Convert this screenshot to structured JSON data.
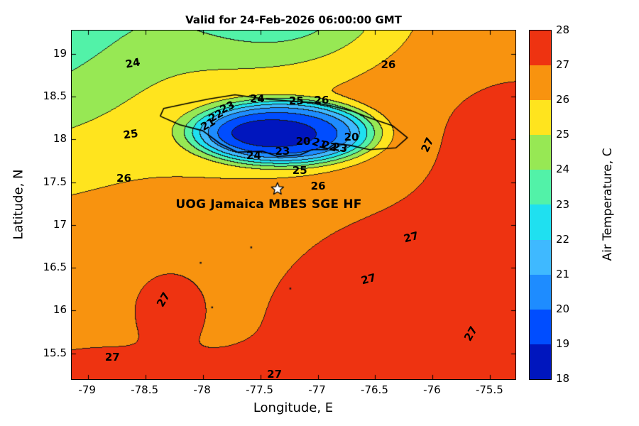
{
  "chart_data": {
    "type": "heatmap",
    "title": "Valid for 24-Feb-2026 06:00:00 GMT",
    "xlabel": "Longitude, E",
    "ylabel": "Latitude, N",
    "xlim": [
      -79.14,
      -75.28
    ],
    "ylim": [
      15.2,
      19.27
    ],
    "xticks": {
      "values": [
        -79,
        -78.5,
        -78,
        -77.5,
        -77,
        -76.5,
        -76,
        -75.5
      ],
      "labels": [
        "-79",
        "-78.5",
        "-78",
        "-77.5",
        "-77",
        "-76.5",
        "-76",
        "-75.5"
      ]
    },
    "yticks": {
      "values": [
        15.5,
        16,
        16.5,
        17,
        17.5,
        18,
        18.5,
        19
      ],
      "labels": [
        "15.5",
        "16",
        "16.5",
        "17",
        "17.5",
        "18",
        "18.5",
        "19"
      ]
    },
    "grid": false,
    "colorbar": {
      "label": "Air Temperature, C",
      "min": 18,
      "max": 28,
      "tick_labels": [
        "18",
        "19",
        "20",
        "21",
        "22",
        "23",
        "24",
        "25",
        "26",
        "27",
        "28"
      ],
      "band_colors": [
        "#0016BE",
        "#004DFF",
        "#1E8CFF",
        "#3FB9FF",
        "#1FE0F0",
        "#52F2A8",
        "#97E854",
        "#FFE41E",
        "#F8930F",
        "#EE3311"
      ]
    },
    "contour_levels": [
      19,
      20,
      21,
      22,
      23,
      24,
      25,
      26,
      27
    ],
    "contour_line_color": "#191919",
    "station": {
      "label": "UOG Jamaica MBES SGE HF",
      "marker": "star-icon",
      "lon": -77.35,
      "lat": 17.42,
      "label_lon": -77.42,
      "label_lat": 17.23
    },
    "contour_labels": [
      {
        "t": "24",
        "lon": -78.6,
        "lat": 18.88,
        "rot": -10
      },
      {
        "t": "26",
        "lon": -76.38,
        "lat": 18.86,
        "rot": 0
      },
      {
        "t": "24",
        "lon": -77.52,
        "lat": 18.47,
        "rot": 0
      },
      {
        "t": "25",
        "lon": -77.18,
        "lat": 18.44,
        "rot": 0
      },
      {
        "t": "26",
        "lon": -76.96,
        "lat": 18.45,
        "rot": 0
      },
      {
        "t": "23",
        "lon": -77.78,
        "lat": 18.37,
        "rot": -25
      },
      {
        "t": "22",
        "lon": -77.88,
        "lat": 18.27,
        "rot": -30
      },
      {
        "t": "21",
        "lon": -77.95,
        "lat": 18.17,
        "rot": -30
      },
      {
        "t": "25",
        "lon": -78.62,
        "lat": 18.05,
        "rot": -8
      },
      {
        "t": "20",
        "lon": -77.12,
        "lat": 17.97,
        "rot": 0
      },
      {
        "t": "20",
        "lon": -76.7,
        "lat": 18.02,
        "rot": 0
      },
      {
        "t": "21",
        "lon": -76.98,
        "lat": 17.94,
        "rot": 20
      },
      {
        "t": "22",
        "lon": -76.89,
        "lat": 17.91,
        "rot": 15
      },
      {
        "t": "23",
        "lon": -76.8,
        "lat": 17.89,
        "rot": 10
      },
      {
        "t": "24",
        "lon": -77.55,
        "lat": 17.8,
        "rot": 0
      },
      {
        "t": "23",
        "lon": -77.3,
        "lat": 17.85,
        "rot": 0
      },
      {
        "t": "25",
        "lon": -77.15,
        "lat": 17.63,
        "rot": 0
      },
      {
        "t": "26",
        "lon": -76.99,
        "lat": 17.45,
        "rot": 0
      },
      {
        "t": "26",
        "lon": -78.68,
        "lat": 17.54,
        "rot": 0
      },
      {
        "t": "27",
        "lon": -76.04,
        "lat": 17.93,
        "rot": -65
      },
      {
        "t": "27",
        "lon": -76.18,
        "lat": 16.85,
        "rot": -15
      },
      {
        "t": "27",
        "lon": -76.55,
        "lat": 16.36,
        "rot": -15
      },
      {
        "t": "27",
        "lon": -78.34,
        "lat": 16.12,
        "rot": -60
      },
      {
        "t": "27",
        "lon": -75.66,
        "lat": 15.72,
        "rot": -60
      },
      {
        "t": "27",
        "lon": -78.78,
        "lat": 15.45,
        "rot": 0
      },
      {
        "t": "27",
        "lon": -77.37,
        "lat": 15.25,
        "rot": 0
      }
    ],
    "coastline": [
      [
        -78.37,
        18.27
      ],
      [
        -78.34,
        18.36
      ],
      [
        -78.13,
        18.42
      ],
      [
        -77.95,
        18.47
      ],
      [
        -77.72,
        18.52
      ],
      [
        -77.45,
        18.47
      ],
      [
        -77.26,
        18.45
      ],
      [
        -77.05,
        18.43
      ],
      [
        -76.88,
        18.39
      ],
      [
        -76.7,
        18.33
      ],
      [
        -76.55,
        18.25
      ],
      [
        -76.35,
        18.16
      ],
      [
        -76.22,
        18.02
      ],
      [
        -76.32,
        17.9
      ],
      [
        -76.55,
        17.88
      ],
      [
        -76.72,
        17.93
      ],
      [
        -76.85,
        17.95
      ],
      [
        -76.92,
        17.88
      ],
      [
        -77.05,
        17.88
      ],
      [
        -77.15,
        17.82
      ],
      [
        -77.35,
        17.8
      ],
      [
        -77.48,
        17.86
      ],
      [
        -77.7,
        17.85
      ],
      [
        -77.85,
        17.95
      ],
      [
        -78.0,
        18.1
      ],
      [
        -78.2,
        18.17
      ],
      [
        -78.37,
        18.27
      ]
    ],
    "specks": [
      [
        -77.58,
        16.74
      ],
      [
        -77.24,
        16.26
      ],
      [
        -78.02,
        16.56
      ],
      [
        -77.92,
        16.04
      ]
    ],
    "field": {
      "base": 26.8,
      "features": [
        {
          "name": "nw-cool",
          "lon": -79.9,
          "lat": 19.8,
          "sx": 1.9,
          "sy": 2.0,
          "amp": -4.2,
          "p": 1
        },
        {
          "name": "top-cool",
          "lon": -77.25,
          "lat": 19.55,
          "sx": 0.95,
          "sy": 0.75,
          "amp": -3.0,
          "p": 1
        },
        {
          "name": "island-plateau",
          "lon": -77.3,
          "lat": 18.08,
          "sx": 0.8,
          "sy": 0.38,
          "amp": -6.0,
          "p": 2.5
        },
        {
          "name": "island-core",
          "lon": -77.38,
          "lat": 18.08,
          "sx": 0.45,
          "sy": 0.17,
          "amp": -1.5,
          "p": 1
        },
        {
          "name": "island-skirt",
          "lon": -77.3,
          "lat": 17.88,
          "sx": 0.95,
          "sy": 0.45,
          "amp": -1.1,
          "p": 1
        },
        {
          "name": "south-broad-warm",
          "lon": -75.6,
          "lat": 15.9,
          "sx": 1.5,
          "sy": 1.2,
          "amp": 1.0,
          "p": 1
        },
        {
          "name": "east-warm",
          "lon": -75.3,
          "lat": 17.8,
          "sx": 0.7,
          "sy": 0.8,
          "amp": 0.7,
          "p": 1
        },
        {
          "name": "sw-warm-blob",
          "lon": -78.3,
          "lat": 16.05,
          "sx": 0.25,
          "sy": 0.35,
          "amp": 0.9,
          "p": 1
        },
        {
          "name": "bottom-west-warm",
          "lon": -78.9,
          "lat": 15.0,
          "sx": 0.8,
          "sy": 0.5,
          "amp": 0.8,
          "p": 1
        },
        {
          "name": "bottom-mid-warm",
          "lon": -77.3,
          "lat": 14.9,
          "sx": 1.0,
          "sy": 0.45,
          "amp": 0.9,
          "p": 1
        }
      ]
    }
  }
}
